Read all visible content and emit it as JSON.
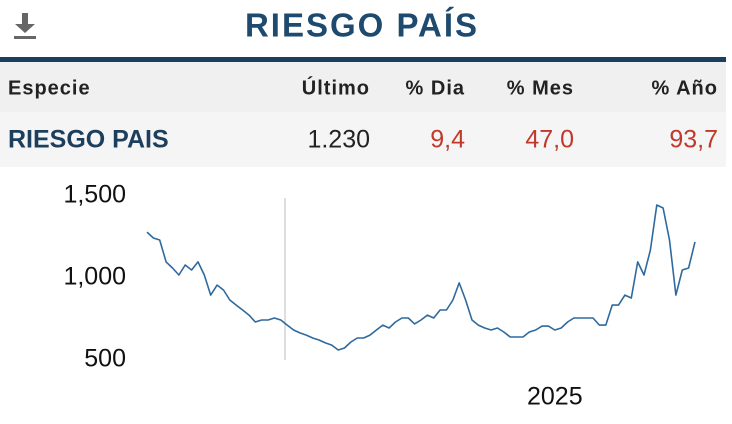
{
  "header": {
    "title": "RIESGO PAÍS"
  },
  "table": {
    "columns": [
      "Especie",
      "Último",
      "% Dia",
      "% Mes",
      "% Año"
    ],
    "rows": [
      [
        "RIESGO PAIS",
        "1.230",
        "9,4",
        "47,0",
        "93,7"
      ]
    ]
  },
  "chart_data": {
    "type": "line",
    "color": "#2f6a9e",
    "grid": false,
    "categories": [
      null,
      null,
      null,
      null,
      null,
      null,
      null,
      null,
      null,
      null,
      null,
      null,
      null,
      null,
      null,
      null,
      null,
      null,
      null,
      null,
      null,
      null,
      null,
      null,
      null,
      null,
      null,
      null,
      null,
      null,
      null,
      null,
      null,
      null,
      null,
      null,
      null,
      null,
      null,
      null,
      null,
      null,
      null,
      null,
      null,
      null,
      null,
      null,
      null,
      null,
      null,
      null,
      null,
      null,
      null,
      null,
      null,
      null,
      null,
      null,
      null,
      null,
      null,
      null,
      "2025",
      null,
      null,
      null,
      null,
      null,
      null,
      null,
      null,
      null,
      null,
      null,
      null,
      null,
      null,
      null,
      null,
      null,
      null,
      null,
      null,
      null,
      null
    ],
    "values": [
      1280,
      1244,
      1232,
      1098,
      1061,
      1018,
      1079,
      1049,
      1098,
      1018,
      896,
      957,
      927,
      866,
      835,
      805,
      774,
      732,
      744,
      744,
      756,
      744,
      713,
      683,
      665,
      652,
      634,
      622,
      604,
      591,
      561,
      573,
      610,
      634,
      634,
      652,
      683,
      713,
      695,
      732,
      756,
      756,
      720,
      744,
      774,
      756,
      805,
      805,
      866,
      970,
      866,
      744,
      713,
      695,
      683,
      695,
      671,
      640,
      640,
      640,
      671,
      683,
      707,
      707,
      683,
      695,
      732,
      756,
      756,
      756,
      756,
      713,
      713,
      835,
      835,
      896,
      878,
      1098,
      1018,
      1171,
      1445,
      1427,
      1232,
      896,
      1049,
      1061,
      1220
    ],
    "ylim": [
      500,
      1500
    ],
    "yticks": [
      {
        "value": 500,
        "label": "500"
      },
      {
        "value": 1000,
        "label": "1,000"
      },
      {
        "value": 1500,
        "label": "1,500"
      }
    ]
  }
}
